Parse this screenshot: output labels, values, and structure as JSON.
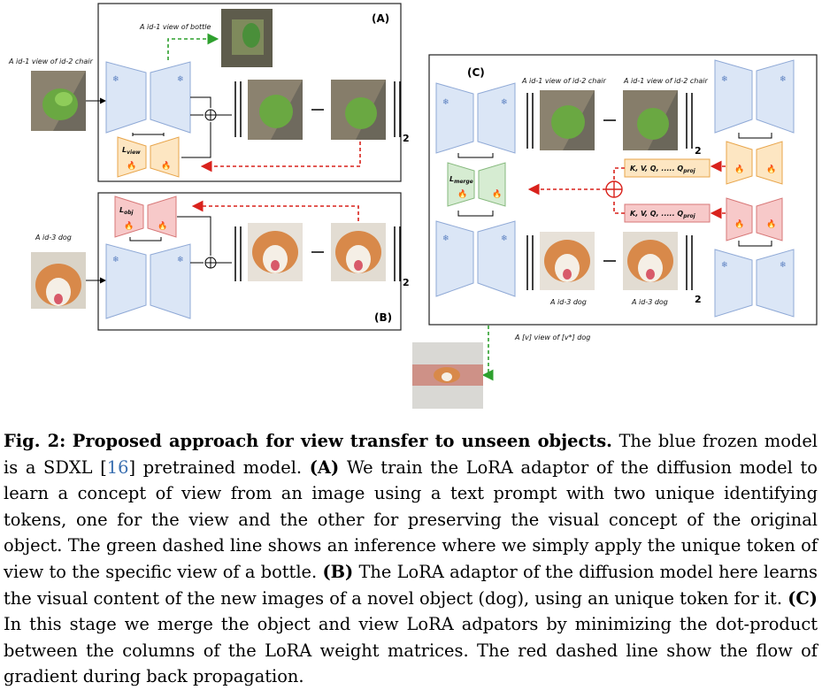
{
  "diagram": {
    "panel_a": {
      "letter": "(A)",
      "input_label": "A id-1 view of  id-2 chair",
      "output_label": "A id-1 view of bottle",
      "loss_label": "L",
      "loss_sub": "view",
      "norm_sub": "2"
    },
    "panel_b": {
      "letter": "(B)",
      "input_label": "A id-3 dog",
      "loss_label": "L",
      "loss_sub": "obj",
      "norm_sub": "2"
    },
    "panel_c": {
      "letter": "(C)",
      "top_label_1": "A id-1 view of  id-2 chair",
      "top_label_2": "A id-1 view of  id-2 chair",
      "bottom_label_1": "A id-3 dog",
      "bottom_label_2": "A id-3 dog",
      "merge_label": "L",
      "merge_sub": "merge",
      "proj_label": "K, V, Q, ..... Q",
      "proj_sub": "proj",
      "norm_sub": "2",
      "output_label": "A [v] view of  [v*] dog"
    },
    "icons": {
      "frozen": "snowflake-icon",
      "trainable": "flame-icon",
      "sum": "circled-plus-icon"
    },
    "colors": {
      "frozen": "#dbe6f6",
      "frozen_stroke": "#8fa9d6",
      "view_lora": "#fde6c2",
      "view_lora_stroke": "#e8a54b",
      "obj_lora": "#f7c9c9",
      "obj_lora_stroke": "#d77777",
      "merge_lora": "#d6ecd2",
      "merge_lora_stroke": "#86b97d",
      "gradient_line": "#d9221c",
      "inference_line": "#2ea02e"
    }
  },
  "caption": {
    "fig_label": "Fig. 2:",
    "title": "Proposed approach for view transfer to unseen objects.",
    "part1": "The blue frozen model is a SDXL [",
    "cite": "16",
    "part2": "] pretrained model.",
    "tag_a": "(A)",
    "text_a": "We train the LoRA adaptor of the diffusion model to learn a concept of view from an image using a text prompt with two unique identifying tokens, one for the view and the other for preserving the visual concept of the original object. The green dashed line shows an inference where we simply apply the unique token of view to the specific view of a bottle.",
    "tag_b": "(B)",
    "text_b": "The LoRA adaptor of the diffusion model here learns the visual content of the new images of a novel object (dog), using an unique token for it.",
    "tag_c": "(C)",
    "text_c": "In this stage we merge the object and view LoRA adpators by minimizing the dot-product between the columns of the LoRA weight matrices. The red dashed line show the flow of gradient during back propagation."
  }
}
